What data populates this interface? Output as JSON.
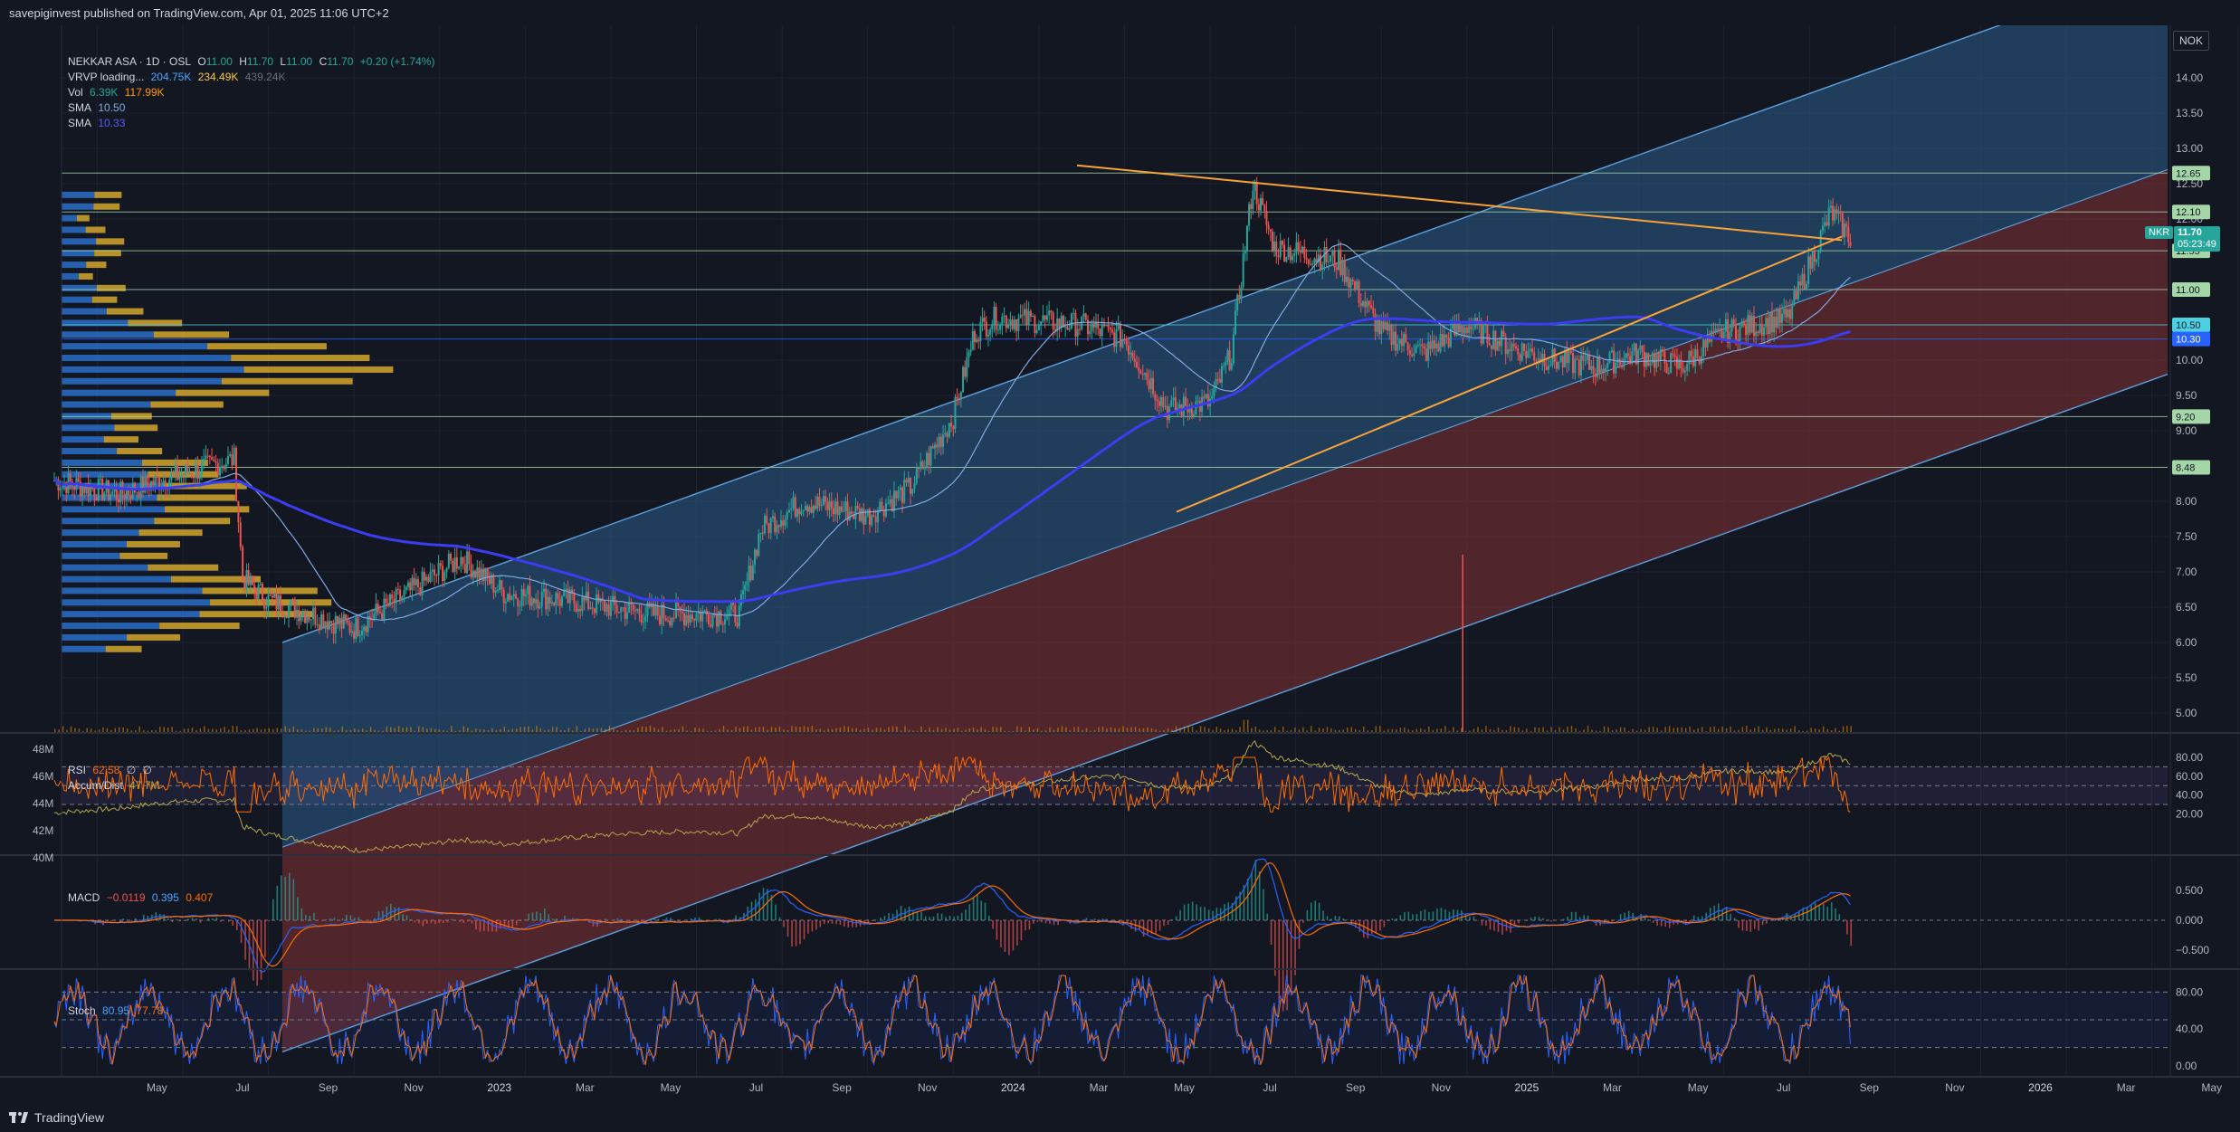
{
  "header": {
    "published": "savepiginvest published on TradingView.com, Apr 01, 2025 11:06 UTC+2"
  },
  "currency": "NOK",
  "legend": {
    "title": "NEKKAR ASA · 1D · OSL",
    "ohlc": {
      "o_label": "O",
      "o": "11.00",
      "h_label": "H",
      "h": "11.70",
      "l_label": "L",
      "l": "11.00",
      "c_label": "C",
      "c": "11.70",
      "change": "+0.20 (+1.74%)"
    },
    "vrvp": {
      "label": "VRVP loading...",
      "v1": "204.75K",
      "v2": "234.49K",
      "v3": "439.24K"
    },
    "vol": {
      "label": "Vol",
      "v1": "6.39K",
      "v2": "117.99K"
    },
    "sma1": {
      "label": "SMA",
      "value": "10.50"
    },
    "sma2": {
      "label": "SMA",
      "value": "10.33"
    },
    "rsi": {
      "label": "RSI",
      "value": "62.58",
      "e1": "∅",
      "e2": "∅"
    },
    "accum": {
      "label": "Accum/Dist",
      "value": "47.7M"
    },
    "macd": {
      "label": "MACD",
      "v1": "−0.0119",
      "v2": "0.395",
      "v3": "0.407"
    },
    "stoch": {
      "label": "Stoch",
      "v1": "80.95",
      "v2": "77.78"
    }
  },
  "price_axis": [
    "14.00",
    "13.50",
    "13.00",
    "12.50",
    "12.00",
    "11.50",
    "11.00",
    "10.50",
    "10.00",
    "9.50",
    "9.00",
    "8.50",
    "8.00",
    "7.50",
    "7.00",
    "6.50",
    "6.00",
    "5.50",
    "5.00"
  ],
  "hlines": [
    {
      "value": 12.65,
      "label": "12.65",
      "color": "#a5d6a7"
    },
    {
      "value": 12.1,
      "label": "12.10",
      "color": "#a5d6a7"
    },
    {
      "value": 11.55,
      "label": "11.55",
      "color": "#a5d6a7"
    },
    {
      "value": 11.0,
      "label": "11.00",
      "color": "#a5d6a7"
    },
    {
      "value": 10.5,
      "label": "10.50",
      "color": "#4dd0e1"
    },
    {
      "value": 10.3,
      "label": "10.30",
      "color": "#2962ff"
    },
    {
      "value": 9.2,
      "label": "9.20",
      "color": "#a5d6a7"
    },
    {
      "value": 8.48,
      "label": "8.48",
      "color": "#a5d6a7"
    }
  ],
  "last_price": {
    "symbol": "NKR",
    "price": "11.70",
    "countdown": "05:23:49"
  },
  "rsi_axis": [
    "80.00",
    "60.00",
    "40.00",
    "20.00"
  ],
  "ad_axis": [
    "48M",
    "46M",
    "44M",
    "42M",
    "40M"
  ],
  "macd_axis": [
    "0.500",
    "0.000",
    "−0.500"
  ],
  "stoch_axis": [
    "80.00",
    "40.00",
    "0.00"
  ],
  "time_axis": [
    "May",
    "Jul",
    "Sep",
    "Nov",
    "2023",
    "Mar",
    "May",
    "Jul",
    "Sep",
    "Nov",
    "2024",
    "Mar",
    "May",
    "Jul",
    "Sep",
    "Nov",
    "2025",
    "Mar",
    "May",
    "Jul",
    "Sep",
    "Nov",
    "2026",
    "Mar",
    "May",
    "Jul"
  ],
  "colors": {
    "bg": "#131722",
    "up": "#26a69a",
    "down": "#ef5350",
    "channel_upper": "#2b5c8a",
    "channel_lower": "#7a2e33",
    "trend": "#f7a23b",
    "sma_fast": "#7fa9e0",
    "sma_slow": "#3c3cf0",
    "rsi": "#ff6d00",
    "accum": "#b5a64a",
    "macd": "#2962ff",
    "signal": "#ff6d00",
    "stoch_k": "#2962ff",
    "stoch_d": "#ff6d00"
  },
  "icons": {
    "zoom": "z-icon",
    "logo": "tradingview-logo"
  },
  "zoom_label": "Z",
  "brand": "TradingView"
}
